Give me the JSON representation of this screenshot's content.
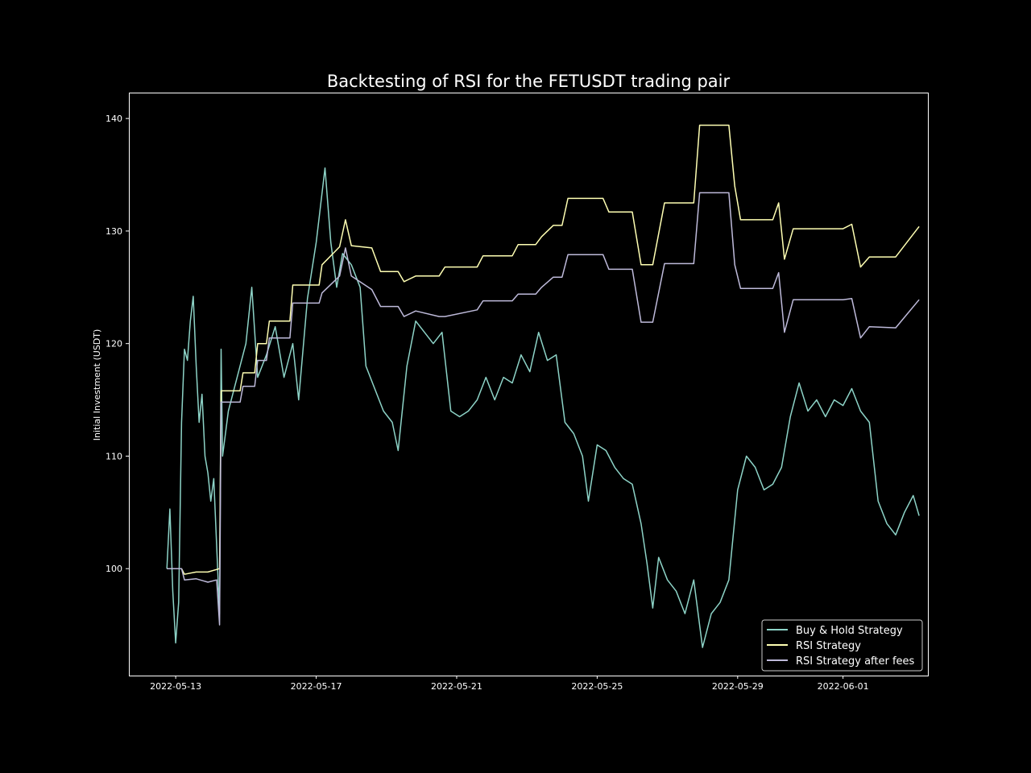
{
  "chart_data": {
    "type": "line",
    "title": "Backtesting of RSI for the FETUSDT trading pair",
    "xlabel": "",
    "ylabel": "Initial Investment (USDT)",
    "x_range": [
      "2022-05-11T16:00",
      "2022-06-03T10:00"
    ],
    "ylim": [
      90.5,
      142.3
    ],
    "y_ticks": [
      100,
      110,
      120,
      130,
      140
    ],
    "x_ticks": [
      "2022-05-13",
      "2022-05-17",
      "2022-05-21",
      "2022-05-25",
      "2022-05-29",
      "2022-06-01"
    ],
    "grid": false,
    "legend_position": "lower-right",
    "series": [
      {
        "name": "Buy & Hold Strategy",
        "color": "#8dd3c7",
        "points": [
          [
            "2022-05-12T18:00",
            100.0
          ],
          [
            "2022-05-12T20:00",
            105.3
          ],
          [
            "2022-05-12T22:00",
            98.0
          ],
          [
            "2022-05-13T00:00",
            93.4
          ],
          [
            "2022-05-13T02:00",
            97.0
          ],
          [
            "2022-05-13T04:00",
            113.0
          ],
          [
            "2022-05-13T06:00",
            119.5
          ],
          [
            "2022-05-13T08:00",
            118.5
          ],
          [
            "2022-05-13T10:00",
            122.0
          ],
          [
            "2022-05-13T12:00",
            124.2
          ],
          [
            "2022-05-13T14:00",
            118.0
          ],
          [
            "2022-05-13T16:00",
            113.0
          ],
          [
            "2022-05-13T18:00",
            115.5
          ],
          [
            "2022-05-13T20:00",
            110.0
          ],
          [
            "2022-05-13T22:00",
            108.5
          ],
          [
            "2022-05-14T00:00",
            106.0
          ],
          [
            "2022-05-14T02:00",
            108.0
          ],
          [
            "2022-05-14T04:00",
            102.0
          ],
          [
            "2022-05-14T06:00",
            96.0
          ],
          [
            "2022-05-14T07:00",
            119.5
          ],
          [
            "2022-05-14T08:00",
            110.0
          ],
          [
            "2022-05-14T12:00",
            114.0
          ],
          [
            "2022-05-14T18:00",
            117.0
          ],
          [
            "2022-05-15T00:00",
            120.0
          ],
          [
            "2022-05-15T04:00",
            125.0
          ],
          [
            "2022-05-15T08:00",
            117.0
          ],
          [
            "2022-05-15T14:00",
            119.0
          ],
          [
            "2022-05-15T20:00",
            121.5
          ],
          [
            "2022-05-16T02:00",
            117.0
          ],
          [
            "2022-05-16T08:00",
            120.0
          ],
          [
            "2022-05-16T12:00",
            115.0
          ],
          [
            "2022-05-16T18:00",
            124.0
          ],
          [
            "2022-05-17T00:00",
            129.0
          ],
          [
            "2022-05-17T06:00",
            135.6
          ],
          [
            "2022-05-17T10:00",
            129.0
          ],
          [
            "2022-05-17T14:00",
            125.0
          ],
          [
            "2022-05-17T18:00",
            128.0
          ],
          [
            "2022-05-18T00:00",
            127.0
          ],
          [
            "2022-05-18T06:00",
            125.0
          ],
          [
            "2022-05-18T10:00",
            118.0
          ],
          [
            "2022-05-18T16:00",
            116.0
          ],
          [
            "2022-05-18T22:00",
            114.0
          ],
          [
            "2022-05-19T04:00",
            113.0
          ],
          [
            "2022-05-19T08:00",
            110.5
          ],
          [
            "2022-05-19T14:00",
            118.0
          ],
          [
            "2022-05-19T20:00",
            122.0
          ],
          [
            "2022-05-20T02:00",
            121.0
          ],
          [
            "2022-05-20T08:00",
            120.0
          ],
          [
            "2022-05-20T14:00",
            121.0
          ],
          [
            "2022-05-20T20:00",
            114.0
          ],
          [
            "2022-05-21T02:00",
            113.5
          ],
          [
            "2022-05-21T08:00",
            114.0
          ],
          [
            "2022-05-21T14:00",
            115.0
          ],
          [
            "2022-05-21T20:00",
            117.0
          ],
          [
            "2022-05-22T02:00",
            115.0
          ],
          [
            "2022-05-22T08:00",
            117.0
          ],
          [
            "2022-05-22T14:00",
            116.5
          ],
          [
            "2022-05-22T20:00",
            119.0
          ],
          [
            "2022-05-23T02:00",
            117.5
          ],
          [
            "2022-05-23T08:00",
            121.0
          ],
          [
            "2022-05-23T14:00",
            118.5
          ],
          [
            "2022-05-23T20:00",
            119.0
          ],
          [
            "2022-05-24T02:00",
            113.0
          ],
          [
            "2022-05-24T08:00",
            112.0
          ],
          [
            "2022-05-24T14:00",
            110.0
          ],
          [
            "2022-05-24T18:00",
            106.0
          ],
          [
            "2022-05-25T00:00",
            111.0
          ],
          [
            "2022-05-25T06:00",
            110.5
          ],
          [
            "2022-05-25T12:00",
            109.0
          ],
          [
            "2022-05-25T18:00",
            108.0
          ],
          [
            "2022-05-26T00:00",
            107.5
          ],
          [
            "2022-05-26T06:00",
            104.0
          ],
          [
            "2022-05-26T10:00",
            100.5
          ],
          [
            "2022-05-26T14:00",
            96.5
          ],
          [
            "2022-05-26T18:00",
            101.0
          ],
          [
            "2022-05-27T00:00",
            99.0
          ],
          [
            "2022-05-27T06:00",
            98.0
          ],
          [
            "2022-05-27T12:00",
            96.0
          ],
          [
            "2022-05-27T18:00",
            99.0
          ],
          [
            "2022-05-28T00:00",
            93.0
          ],
          [
            "2022-05-28T06:00",
            96.0
          ],
          [
            "2022-05-28T12:00",
            97.0
          ],
          [
            "2022-05-28T18:00",
            99.0
          ],
          [
            "2022-05-29T00:00",
            107.0
          ],
          [
            "2022-05-29T06:00",
            110.0
          ],
          [
            "2022-05-29T12:00",
            109.0
          ],
          [
            "2022-05-29T18:00",
            107.0
          ],
          [
            "2022-05-30T00:00",
            107.5
          ],
          [
            "2022-05-30T06:00",
            109.0
          ],
          [
            "2022-05-30T12:00",
            113.5
          ],
          [
            "2022-05-30T18:00",
            116.5
          ],
          [
            "2022-05-31T00:00",
            114.0
          ],
          [
            "2022-05-31T06:00",
            115.0
          ],
          [
            "2022-05-31T12:00",
            113.5
          ],
          [
            "2022-05-31T18:00",
            115.0
          ],
          [
            "2022-06-01T00:00",
            114.5
          ],
          [
            "2022-06-01T06:00",
            116.0
          ],
          [
            "2022-06-01T12:00",
            114.0
          ],
          [
            "2022-06-01T18:00",
            113.0
          ],
          [
            "2022-06-02T00:00",
            106.0
          ],
          [
            "2022-06-02T06:00",
            104.0
          ],
          [
            "2022-06-02T12:00",
            103.0
          ],
          [
            "2022-06-02T18:00",
            105.0
          ],
          [
            "2022-06-03T00:00",
            106.5
          ],
          [
            "2022-06-03T04:00",
            104.7
          ]
        ]
      },
      {
        "name": "RSI Strategy",
        "color": "#ffffb3",
        "points": [
          [
            "2022-05-12T18:00",
            100.0
          ],
          [
            "2022-05-13T04:00",
            100.0
          ],
          [
            "2022-05-13T06:00",
            99.5
          ],
          [
            "2022-05-13T14:00",
            99.7
          ],
          [
            "2022-05-13T22:00",
            99.7
          ],
          [
            "2022-05-14T06:00",
            100.0
          ],
          [
            "2022-05-14T07:00",
            115.8
          ],
          [
            "2022-05-14T20:00",
            115.8
          ],
          [
            "2022-05-14T22:00",
            117.4
          ],
          [
            "2022-05-15T06:00",
            117.4
          ],
          [
            "2022-05-15T08:00",
            120.0
          ],
          [
            "2022-05-15T14:00",
            120.0
          ],
          [
            "2022-05-15T16:00",
            122.0
          ],
          [
            "2022-05-16T06:00",
            122.0
          ],
          [
            "2022-05-16T08:00",
            125.2
          ],
          [
            "2022-05-17T02:00",
            125.2
          ],
          [
            "2022-05-17T04:00",
            127.0
          ],
          [
            "2022-05-17T16:00",
            128.6
          ],
          [
            "2022-05-17T20:00",
            131.0
          ],
          [
            "2022-05-18T00:00",
            128.7
          ],
          [
            "2022-05-18T14:00",
            128.5
          ],
          [
            "2022-05-18T20:00",
            126.4
          ],
          [
            "2022-05-19T08:00",
            126.4
          ],
          [
            "2022-05-19T12:00",
            125.5
          ],
          [
            "2022-05-19T20:00",
            126.0
          ],
          [
            "2022-05-20T12:00",
            126.0
          ],
          [
            "2022-05-20T16:00",
            126.8
          ],
          [
            "2022-05-21T14:00",
            126.8
          ],
          [
            "2022-05-21T18:00",
            127.8
          ],
          [
            "2022-05-22T14:00",
            127.8
          ],
          [
            "2022-05-22T18:00",
            128.8
          ],
          [
            "2022-05-23T06:00",
            128.8
          ],
          [
            "2022-05-23T10:00",
            129.5
          ],
          [
            "2022-05-23T18:00",
            130.5
          ],
          [
            "2022-05-24T00:00",
            130.5
          ],
          [
            "2022-05-24T04:00",
            132.9
          ],
          [
            "2022-05-25T04:00",
            132.9
          ],
          [
            "2022-05-25T08:00",
            131.7
          ],
          [
            "2022-05-26T00:00",
            131.7
          ],
          [
            "2022-05-26T06:00",
            127.0
          ],
          [
            "2022-05-26T14:00",
            127.0
          ],
          [
            "2022-05-26T22:00",
            132.5
          ],
          [
            "2022-05-27T18:00",
            132.5
          ],
          [
            "2022-05-27T22:00",
            139.4
          ],
          [
            "2022-05-28T18:00",
            139.4
          ],
          [
            "2022-05-28T22:00",
            134.0
          ],
          [
            "2022-05-29T02:00",
            131.0
          ],
          [
            "2022-05-30T00:00",
            131.0
          ],
          [
            "2022-05-30T04:00",
            132.5
          ],
          [
            "2022-05-30T08:00",
            127.5
          ],
          [
            "2022-05-30T14:00",
            130.2
          ],
          [
            "2022-06-01T00:00",
            130.2
          ],
          [
            "2022-06-01T06:00",
            130.6
          ],
          [
            "2022-06-01T12:00",
            126.8
          ],
          [
            "2022-06-01T18:00",
            127.7
          ],
          [
            "2022-06-02T12:00",
            127.7
          ],
          [
            "2022-06-03T04:00",
            130.4
          ]
        ]
      },
      {
        "name": "RSI Strategy after fees",
        "color": "#bebada",
        "points": [
          [
            "2022-05-12T18:00",
            100.0
          ],
          [
            "2022-05-13T04:00",
            100.0
          ],
          [
            "2022-05-13T06:00",
            99.0
          ],
          [
            "2022-05-13T14:00",
            99.1
          ],
          [
            "2022-05-13T22:00",
            98.8
          ],
          [
            "2022-05-14T04:00",
            99.0
          ],
          [
            "2022-05-14T06:00",
            95.0
          ],
          [
            "2022-05-14T07:00",
            114.8
          ],
          [
            "2022-05-14T20:00",
            114.8
          ],
          [
            "2022-05-14T22:00",
            116.2
          ],
          [
            "2022-05-15T06:00",
            116.2
          ],
          [
            "2022-05-15T08:00",
            118.5
          ],
          [
            "2022-05-15T14:00",
            118.5
          ],
          [
            "2022-05-15T16:00",
            120.5
          ],
          [
            "2022-05-16T06:00",
            120.5
          ],
          [
            "2022-05-16T08:00",
            123.6
          ],
          [
            "2022-05-17T02:00",
            123.6
          ],
          [
            "2022-05-17T04:00",
            124.5
          ],
          [
            "2022-05-17T16:00",
            126.0
          ],
          [
            "2022-05-17T20:00",
            128.5
          ],
          [
            "2022-05-18T00:00",
            126.0
          ],
          [
            "2022-05-18T14:00",
            124.8
          ],
          [
            "2022-05-18T20:00",
            123.3
          ],
          [
            "2022-05-19T08:00",
            123.3
          ],
          [
            "2022-05-19T12:00",
            122.4
          ],
          [
            "2022-05-19T20:00",
            122.9
          ],
          [
            "2022-05-20T12:00",
            122.4
          ],
          [
            "2022-05-20T16:00",
            122.4
          ],
          [
            "2022-05-21T14:00",
            123.0
          ],
          [
            "2022-05-21T18:00",
            123.8
          ],
          [
            "2022-05-22T14:00",
            123.8
          ],
          [
            "2022-05-22T18:00",
            124.4
          ],
          [
            "2022-05-23T06:00",
            124.4
          ],
          [
            "2022-05-23T10:00",
            125.0
          ],
          [
            "2022-05-23T18:00",
            125.9
          ],
          [
            "2022-05-24T00:00",
            125.9
          ],
          [
            "2022-05-24T04:00",
            127.9
          ],
          [
            "2022-05-25T04:00",
            127.9
          ],
          [
            "2022-05-25T08:00",
            126.6
          ],
          [
            "2022-05-26T00:00",
            126.6
          ],
          [
            "2022-05-26T06:00",
            121.9
          ],
          [
            "2022-05-26T14:00",
            121.9
          ],
          [
            "2022-05-26T22:00",
            127.1
          ],
          [
            "2022-05-27T18:00",
            127.1
          ],
          [
            "2022-05-27T22:00",
            133.4
          ],
          [
            "2022-05-28T18:00",
            133.4
          ],
          [
            "2022-05-28T22:00",
            127.0
          ],
          [
            "2022-05-29T02:00",
            124.9
          ],
          [
            "2022-05-30T00:00",
            124.9
          ],
          [
            "2022-05-30T04:00",
            126.3
          ],
          [
            "2022-05-30T08:00",
            121.0
          ],
          [
            "2022-05-30T14:00",
            123.9
          ],
          [
            "2022-06-01T00:00",
            123.9
          ],
          [
            "2022-06-01T06:00",
            124.0
          ],
          [
            "2022-06-01T12:00",
            120.5
          ],
          [
            "2022-06-01T18:00",
            121.5
          ],
          [
            "2022-06-02T12:00",
            121.4
          ],
          [
            "2022-06-03T04:00",
            123.9
          ]
        ]
      }
    ]
  }
}
